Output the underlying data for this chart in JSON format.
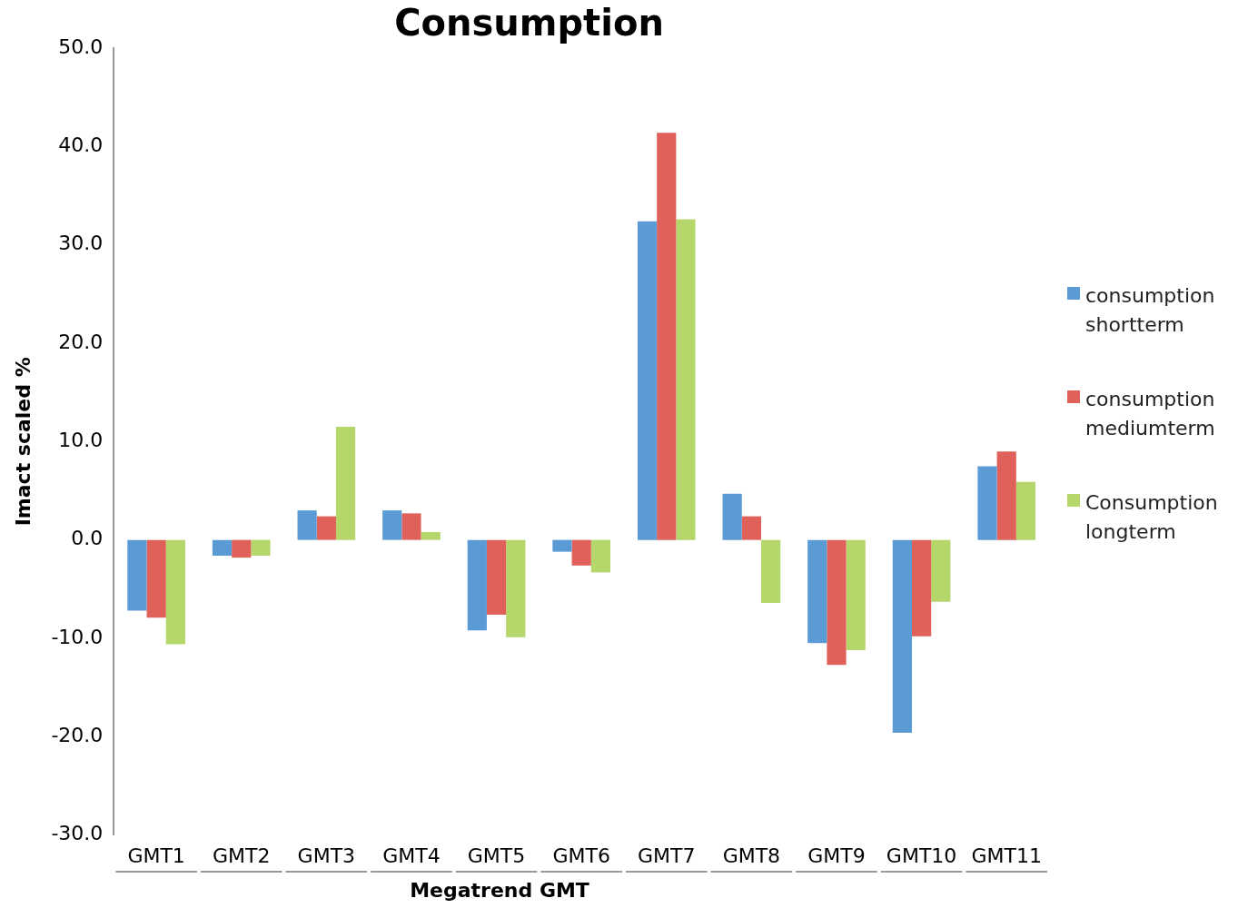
{
  "chart_data": {
    "type": "bar",
    "title": "Consumption",
    "xlabel": "Megatrend GMT",
    "ylabel": "Imact scaled %",
    "categories": [
      "GMT1",
      "GMT2",
      "GMT3",
      "GMT4",
      "GMT5",
      "GMT6",
      "GMT7",
      "GMT8",
      "GMT9",
      "GMT10",
      "GMT11"
    ],
    "series": [
      {
        "name": "consumption shortterm",
        "color": "#5b9bd5",
        "values": [
          -7.2,
          -1.6,
          3.0,
          3.0,
          -9.2,
          -1.2,
          32.4,
          4.7,
          -10.5,
          -19.6,
          7.5
        ]
      },
      {
        "name": "consumption mediumterm",
        "color": "#e0605a",
        "values": [
          -7.9,
          -1.8,
          2.4,
          2.7,
          -7.6,
          -2.6,
          41.4,
          2.4,
          -12.7,
          -9.8,
          9.0
        ]
      },
      {
        "name": "Consumption longterm",
        "color": "#b5d66a",
        "values": [
          -10.6,
          -1.6,
          11.5,
          0.8,
          -9.9,
          -3.3,
          32.6,
          -6.4,
          -11.2,
          -6.3,
          5.9
        ]
      }
    ],
    "ylim": [
      -30,
      50
    ],
    "yticks": [
      {
        "value": -30,
        "label": "-30.0"
      },
      {
        "value": -20,
        "label": "-20.0"
      },
      {
        "value": -10,
        "label": "-10.0"
      },
      {
        "value": 0,
        "label": "0.0"
      },
      {
        "value": 10,
        "label": "10.0"
      },
      {
        "value": 20,
        "label": "20.0"
      },
      {
        "value": 30,
        "label": "30.0"
      },
      {
        "value": 40,
        "label": "40.0"
      },
      {
        "value": 50,
        "label": "50.0"
      }
    ],
    "grid": false,
    "legend": "right"
  }
}
